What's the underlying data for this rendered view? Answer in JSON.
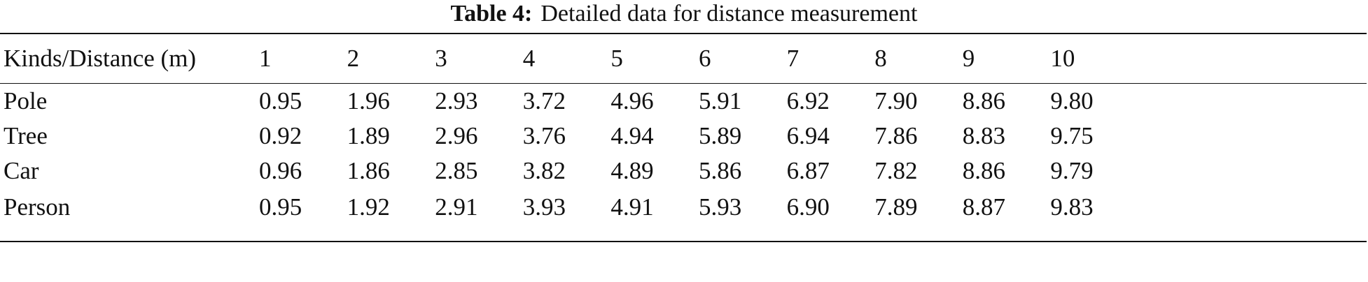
{
  "caption": {
    "label": "Table 4:",
    "text": "Detailed data for distance measurement"
  },
  "table": {
    "header": [
      "Kinds/Distance (m)",
      "1",
      "2",
      "3",
      "4",
      "5",
      "6",
      "7",
      "8",
      "9",
      "10"
    ],
    "rows": [
      [
        "Pole",
        "0.95",
        "1.96",
        "2.93",
        "3.72",
        "4.96",
        "5.91",
        "6.92",
        "7.90",
        "8.86",
        "9.80"
      ],
      [
        "Tree",
        "0.92",
        "1.89",
        "2.96",
        "3.76",
        "4.94",
        "5.89",
        "6.94",
        "7.86",
        "8.83",
        "9.75"
      ],
      [
        "Car",
        "0.96",
        "1.86",
        "2.85",
        "3.82",
        "4.89",
        "5.86",
        "6.87",
        "7.82",
        "8.86",
        "9.79"
      ],
      [
        "Person",
        "0.95",
        "1.92",
        "2.91",
        "3.93",
        "4.91",
        "5.93",
        "6.90",
        "7.89",
        "8.87",
        "9.83"
      ]
    ]
  }
}
